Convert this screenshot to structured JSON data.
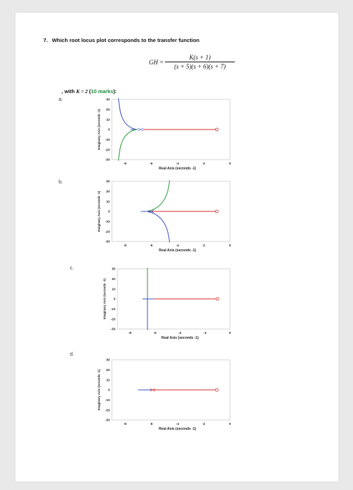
{
  "question": {
    "number": "7.",
    "text": "Which root locus plot corresponds to the transfer function",
    "tf_lhs": "GH =",
    "tf_numerator": "K(s + 1)",
    "tf_denominator": "(s + 5)(s + 6)(s + 7)",
    "k_prefix": ", with ",
    "k_value": "K = 2",
    "marks_open": " (",
    "marks_text": "10 marks",
    "marks_close": "):"
  },
  "colors": {
    "red": "#d42a2a",
    "green": "#2a9a3a",
    "blue": "#3b4fc8"
  },
  "options": [
    {
      "label": "a.",
      "xlabel": "Real Axis (seconds -1)",
      "ylabel": "Imaginary Axis (seconds -1)",
      "xticks": [
        "-8",
        "-6",
        "-4",
        "-2",
        "0"
      ],
      "yticks": [
        "30",
        "20",
        "10",
        "0",
        "-10",
        "-20",
        "-30"
      ]
    },
    {
      "label": "b.",
      "xlabel": "Real Axis (seconds -1)",
      "ylabel": "Imaginary Axis (seconds -1)",
      "xticks": [
        "-8",
        "-6",
        "-4",
        "-2",
        "0"
      ],
      "yticks": [
        "30",
        "20",
        "10",
        "0",
        "-10",
        "-20",
        "-30"
      ]
    },
    {
      "label": "c.",
      "xlabel": "Real Axis (seconds -1)",
      "ylabel": "Imaginary Axis (seconds -1)",
      "xticks": [
        "-8",
        "-6",
        "-4",
        "-2",
        "0"
      ],
      "yticks": [
        "30",
        "20",
        "10",
        "0",
        "-10",
        "-20",
        "-30"
      ]
    },
    {
      "label": "d.",
      "xlabel": "Real Axis (seconds -1)",
      "ylabel": "Imaginary Axis (seconds -1)",
      "xticks": [
        "-8",
        "-6",
        "-4",
        "-2",
        "0"
      ],
      "yticks": [
        "30",
        "20",
        "10",
        "0",
        "-10",
        "-20",
        "-30"
      ]
    }
  ]
}
